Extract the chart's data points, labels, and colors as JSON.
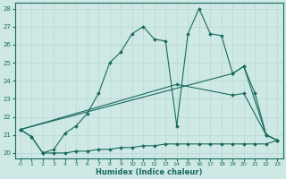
{
  "xlabel": "Humidex (Indice chaleur)",
  "xlim": [
    -0.5,
    23.5
  ],
  "ylim": [
    19.7,
    28.3
  ],
  "yticks": [
    20,
    21,
    22,
    23,
    24,
    25,
    26,
    27,
    28
  ],
  "xticks": [
    0,
    1,
    2,
    3,
    4,
    5,
    6,
    7,
    8,
    9,
    10,
    11,
    12,
    13,
    14,
    15,
    16,
    17,
    18,
    19,
    20,
    21,
    22,
    23
  ],
  "bg_color": "#cde8e5",
  "line_color": "#1a6b5a",
  "grid_color": "#b8d8d4",
  "series": [
    {
      "x": [
        0,
        1,
        2,
        3,
        4,
        5,
        6,
        7,
        8,
        9,
        10,
        11,
        12,
        13,
        14,
        15,
        16,
        17,
        18,
        19,
        20,
        21,
        22,
        23
      ],
      "y": [
        21.3,
        20.9,
        20.0,
        20.2,
        21.1,
        21.5,
        22.2,
        23.3,
        25.0,
        25.6,
        26.6,
        27.0,
        26.3,
        26.2,
        21.5,
        26.6,
        28.0,
        26.6,
        26.5,
        24.4,
        24.8,
        23.3,
        21.0,
        20.7
      ]
    },
    {
      "x": [
        0,
        1,
        2,
        3,
        4,
        5,
        6,
        7,
        8,
        9,
        10,
        11,
        12,
        13,
        14,
        15,
        16,
        17,
        18,
        19,
        20,
        21,
        22,
        23
      ],
      "y": [
        21.3,
        20.9,
        20.0,
        20.0,
        20.0,
        20.1,
        20.1,
        20.2,
        20.2,
        20.3,
        20.3,
        20.4,
        20.4,
        20.5,
        20.5,
        20.5,
        20.5,
        20.5,
        20.5,
        20.5,
        20.5,
        20.5,
        20.5,
        20.7
      ]
    },
    {
      "x": [
        0,
        14,
        19,
        20,
        22,
        23
      ],
      "y": [
        21.3,
        23.8,
        23.2,
        23.3,
        21.0,
        20.7
      ]
    },
    {
      "x": [
        0,
        19,
        20,
        22,
        23
      ],
      "y": [
        21.3,
        24.4,
        24.8,
        21.0,
        20.7
      ]
    }
  ]
}
